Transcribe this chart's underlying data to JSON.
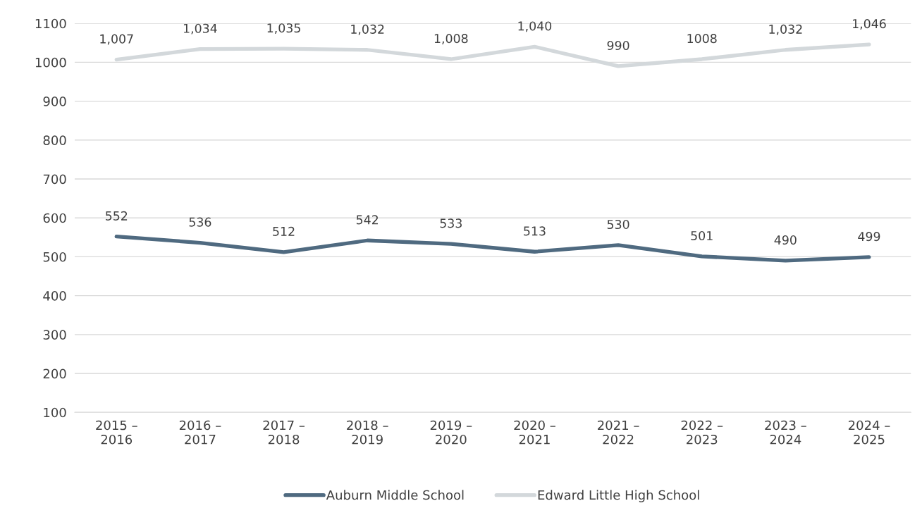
{
  "chart_data": {
    "type": "line",
    "categories": [
      "2015 –\n2016",
      "2016 –\n2017",
      "2017 –\n2018",
      "2018 –\n2019",
      "2019 –\n2020",
      "2020 –\n2021",
      "2021 –\n2022",
      "2022 –\n2023",
      "2023 –\n2024",
      "2024 –\n2025"
    ],
    "series": [
      {
        "name": "Auburn Middle School",
        "color": "#4f6a80",
        "values": [
          552,
          536,
          512,
          542,
          533,
          513,
          530,
          501,
          490,
          499
        ],
        "value_labels": [
          "552",
          "536",
          "512",
          "542",
          "533",
          "513",
          "530",
          "501",
          "490",
          "499"
        ]
      },
      {
        "name": "Edward Little High School",
        "color": "#d3d8db",
        "values": [
          1007,
          1034,
          1035,
          1032,
          1008,
          1040,
          990,
          1008,
          1032,
          1046
        ],
        "value_labels": [
          "1,007",
          "1,034",
          "1,035",
          "1,032",
          "1,008",
          "1,040",
          "990",
          "1008",
          "1,032",
          "1,046"
        ]
      }
    ],
    "ylim": [
      100,
      1100
    ],
    "yticks": [
      100,
      200,
      300,
      400,
      500,
      600,
      700,
      800,
      900,
      1000,
      1100
    ],
    "grid": "y",
    "legend": "bottom",
    "marker": "none",
    "line_style": "solid"
  }
}
